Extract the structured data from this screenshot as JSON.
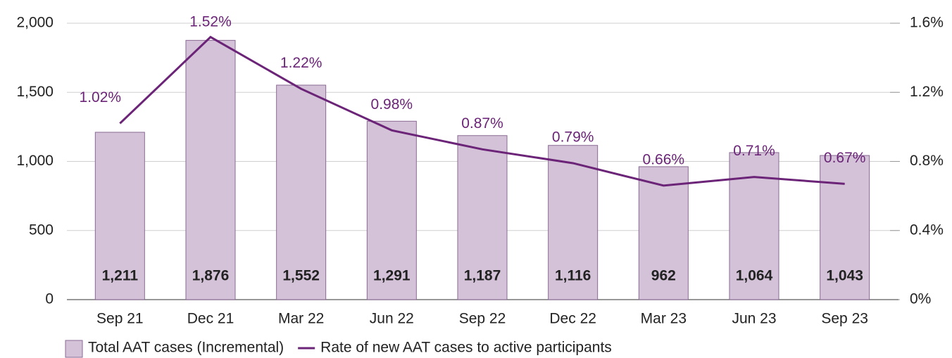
{
  "chart_data": {
    "type": "bar_line",
    "categories": [
      "Sep 21",
      "Dec 21",
      "Mar 22",
      "Jun 22",
      "Sep 22",
      "Dec 22",
      "Mar 23",
      "Jun 23",
      "Sep 23"
    ],
    "series": [
      {
        "name": "Total AAT cases (Incremental)",
        "type": "bar",
        "color": "#d4c3d8",
        "values": [
          1211,
          1876,
          1552,
          1291,
          1187,
          1116,
          962,
          1064,
          1043
        ],
        "value_labels": [
          "1,211",
          "1,876",
          "1,552",
          "1,291",
          "1,187",
          "1,116",
          "962",
          "1,064",
          "1,043"
        ]
      },
      {
        "name": "Rate of new AAT cases to active participants",
        "type": "line",
        "color": "#6b2477",
        "axis": "y2",
        "values": [
          1.02,
          1.52,
          1.22,
          0.98,
          0.87,
          0.79,
          0.66,
          0.71,
          0.67
        ],
        "value_labels": [
          "1.02%",
          "1.52%",
          "1.22%",
          "0.98%",
          "0.87%",
          "0.79%",
          "0.66%",
          "0.71%",
          "0.67%"
        ]
      }
    ],
    "ylim": [
      0,
      2000
    ],
    "yticks": [
      0,
      500,
      {
        "value": 1000,
        "label": "1,000"
      },
      {
        "value": 1500,
        "label": "1,500"
      },
      {
        "value": 2000,
        "label": "2,000"
      }
    ],
    "y2lim": [
      0,
      1.6
    ],
    "y2ticks": [
      {
        "value": 0,
        "label": "0%"
      },
      {
        "value": 0.4,
        "label": "0.4%"
      },
      {
        "value": 0.8,
        "label": "0.8%"
      },
      {
        "value": 1.2,
        "label": "1.2%"
      },
      {
        "value": 1.6,
        "label": "1.6%"
      }
    ],
    "grid": true
  }
}
